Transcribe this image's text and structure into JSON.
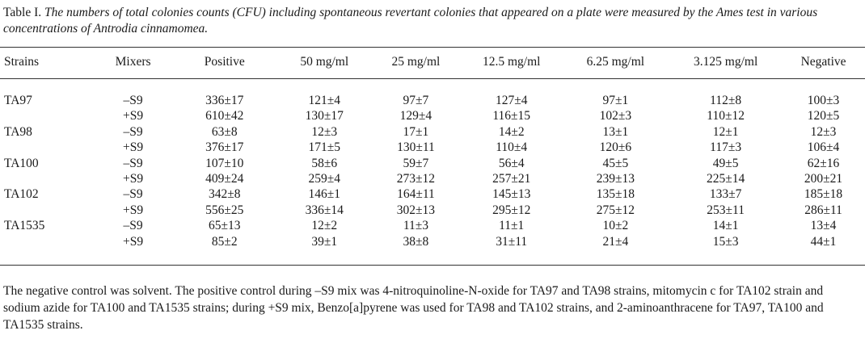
{
  "caption": {
    "label": "Table I.",
    "text": "The numbers of total colonies counts (CFU) including spontaneous revertant colonies that appeared on a plate were measured by the Ames test in various concentrations of Antrodia cinnamomea."
  },
  "table": {
    "headers": [
      "Strains",
      "Mixers",
      "Positive",
      "50 mg/ml",
      "25 mg/ml",
      "12.5 mg/ml",
      "6.25 mg/ml",
      "3.125 mg/ml",
      "Negative"
    ],
    "rows": [
      {
        "strain": "TA97",
        "mixer": "–S9",
        "values": [
          "336±17",
          "121±4",
          "97±7",
          "127±4",
          "97±1",
          "112±8",
          "100±3"
        ]
      },
      {
        "strain": "",
        "mixer": "+S9",
        "values": [
          "610±42",
          "130±17",
          "129±4",
          "116±15",
          "102±3",
          "110±12",
          "120±5"
        ]
      },
      {
        "strain": "TA98",
        "mixer": "–S9",
        "values": [
          "63±8",
          "12±3",
          "17±1",
          "14±2",
          "13±1",
          "12±1",
          "12±3"
        ]
      },
      {
        "strain": "",
        "mixer": "+S9",
        "values": [
          "376±17",
          "171±5",
          "130±11",
          "110±4",
          "120±6",
          "117±3",
          "106±4"
        ]
      },
      {
        "strain": "TA100",
        "mixer": "–S9",
        "values": [
          "107±10",
          "58±6",
          "59±7",
          "56±4",
          "45±5",
          "49±5",
          "62±16"
        ]
      },
      {
        "strain": "",
        "mixer": "+S9",
        "values": [
          "409±24",
          "259±4",
          "273±12",
          "257±21",
          "239±13",
          "225±14",
          "200±21"
        ]
      },
      {
        "strain": "TA102",
        "mixer": "–S9",
        "values": [
          "342±8",
          "146±1",
          "164±11",
          "145±13",
          "135±18",
          "133±7",
          "185±18"
        ]
      },
      {
        "strain": "",
        "mixer": "+S9",
        "values": [
          "556±25",
          "336±14",
          "302±13",
          "295±12",
          "275±12",
          "253±11",
          "286±11"
        ]
      },
      {
        "strain": "TA1535",
        "mixer": "–S9",
        "values": [
          "65±13",
          "12±2",
          "11±3",
          "11±1",
          "10±2",
          "14±1",
          "13±4"
        ]
      },
      {
        "strain": "",
        "mixer": "+S9",
        "values": [
          "85±2",
          "39±1",
          "38±8",
          "31±11",
          "21±4",
          "15±3",
          "44±1"
        ]
      }
    ]
  },
  "footnote": "The negative control was solvent. The positive control during –S9 mix was 4-nitroquinoline-N-oxide for TA97 and TA98 strains, mitomycin c for TA102 strain and sodium azide for TA100 and TA1535 strains; during +S9 mix, Benzo[a]pyrene was used for TA98 and TA102 strains, and 2-aminoanthracene for TA97, TA100 and TA1535 strains."
}
